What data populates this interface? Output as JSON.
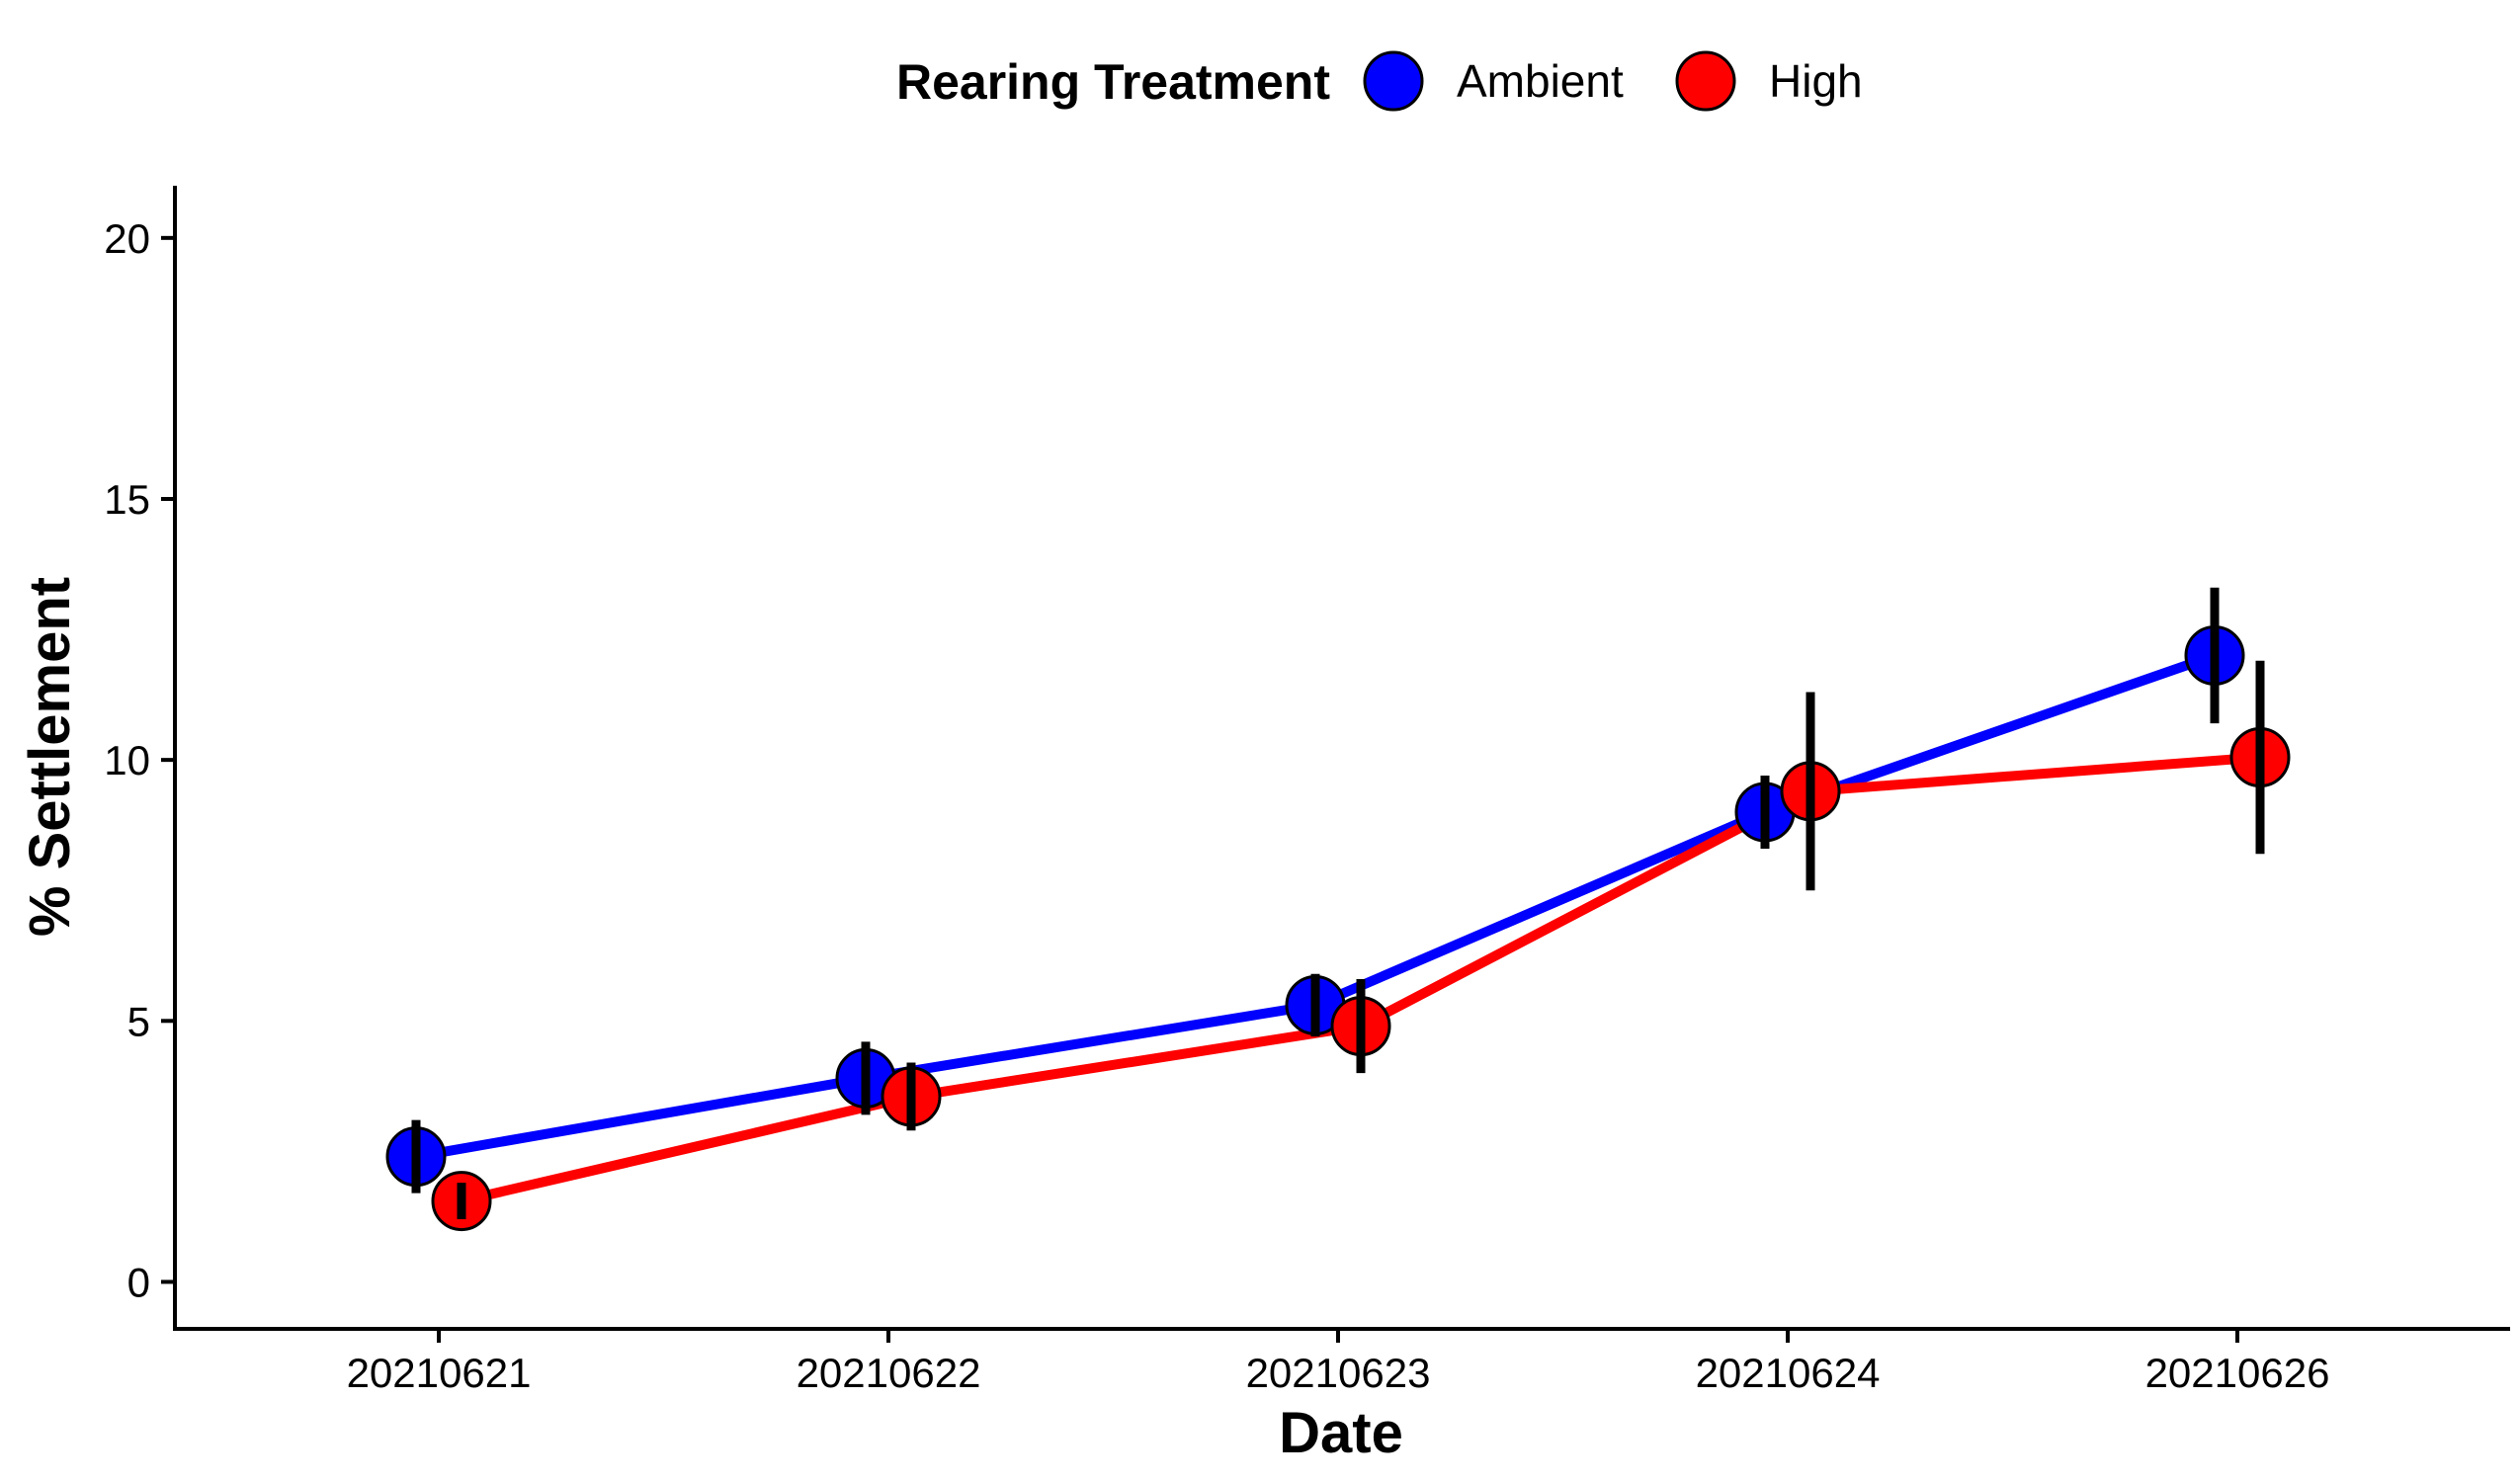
{
  "chart_data": {
    "type": "line",
    "title": "",
    "xlabel": "Date",
    "ylabel": "% Settlement",
    "categories": [
      "20210621",
      "20210622",
      "20210623",
      "20210624",
      "20210626"
    ],
    "ylim": [
      -0.9,
      21
    ],
    "yticks": [
      "0",
      "5",
      "10",
      "15",
      "20"
    ],
    "grid": false,
    "legend": {
      "title": "Rearing Treatment",
      "position": "top",
      "entries": [
        "Ambient",
        "High"
      ]
    },
    "error_bar_color": "#000000",
    "marker_edge_color": "#000000",
    "series": [
      {
        "name": "Ambient",
        "color": "#0000ff",
        "values": [
          2.4,
          3.9,
          5.3,
          9.0,
          12.0
        ],
        "err_low": [
          1.7,
          3.2,
          4.7,
          8.3,
          10.7
        ],
        "err_high": [
          3.1,
          4.6,
          5.9,
          9.7,
          13.3
        ]
      },
      {
        "name": "High",
        "color": "#ff0000",
        "values": [
          1.55,
          3.55,
          4.9,
          9.4,
          10.05
        ],
        "err_low": [
          1.2,
          2.9,
          4.0,
          7.5,
          8.2
        ],
        "err_high": [
          1.9,
          4.2,
          5.8,
          11.3,
          11.9
        ]
      }
    ]
  }
}
